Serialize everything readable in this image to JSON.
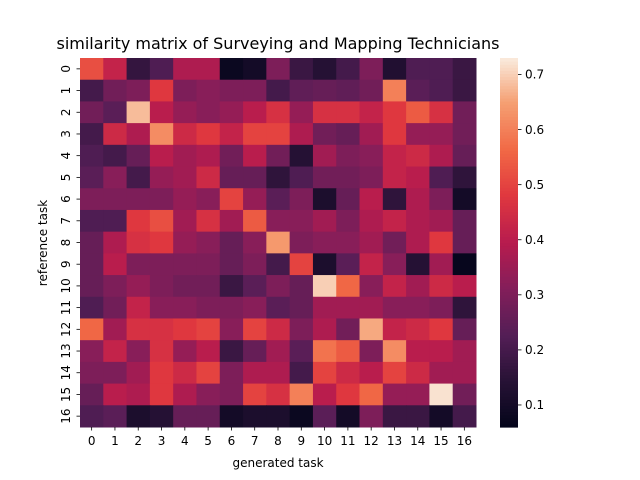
{
  "chart_data": {
    "type": "heatmap",
    "title": "similarity matrix of Surveying and Mapping Technicians",
    "xlabel": "generated task",
    "ylabel": "reference task",
    "x_categories": [
      "0",
      "1",
      "2",
      "3",
      "4",
      "5",
      "6",
      "7",
      "8",
      "9",
      "10",
      "11",
      "12",
      "13",
      "14",
      "15",
      "16"
    ],
    "y_categories": [
      "0",
      "1",
      "2",
      "3",
      "4",
      "5",
      "6",
      "7",
      "8",
      "9",
      "10",
      "11",
      "12",
      "13",
      "14",
      "15",
      "16"
    ],
    "values": [
      [
        0.52,
        0.42,
        0.17,
        0.22,
        0.38,
        0.38,
        0.08,
        0.1,
        0.3,
        0.18,
        0.14,
        0.2,
        0.3,
        0.13,
        0.22,
        0.22,
        0.18
      ],
      [
        0.2,
        0.28,
        0.3,
        0.48,
        0.3,
        0.32,
        0.3,
        0.3,
        0.2,
        0.25,
        0.26,
        0.25,
        0.28,
        0.6,
        0.24,
        0.22,
        0.18
      ],
      [
        0.28,
        0.24,
        0.68,
        0.4,
        0.34,
        0.32,
        0.34,
        0.4,
        0.46,
        0.34,
        0.46,
        0.46,
        0.42,
        0.48,
        0.54,
        0.46,
        0.28
      ],
      [
        0.2,
        0.44,
        0.38,
        0.62,
        0.44,
        0.48,
        0.42,
        0.5,
        0.5,
        0.38,
        0.28,
        0.26,
        0.36,
        0.48,
        0.34,
        0.34,
        0.28
      ],
      [
        0.22,
        0.2,
        0.26,
        0.4,
        0.36,
        0.38,
        0.28,
        0.4,
        0.28,
        0.14,
        0.36,
        0.3,
        0.32,
        0.42,
        0.44,
        0.38,
        0.26
      ],
      [
        0.24,
        0.32,
        0.2,
        0.34,
        0.36,
        0.44,
        0.26,
        0.26,
        0.16,
        0.22,
        0.28,
        0.28,
        0.3,
        0.42,
        0.4,
        0.22,
        0.16
      ],
      [
        0.3,
        0.3,
        0.3,
        0.3,
        0.34,
        0.32,
        0.5,
        0.34,
        0.24,
        0.3,
        0.12,
        0.26,
        0.4,
        0.16,
        0.38,
        0.3,
        0.1
      ],
      [
        0.22,
        0.22,
        0.48,
        0.52,
        0.36,
        0.46,
        0.36,
        0.54,
        0.32,
        0.32,
        0.36,
        0.3,
        0.38,
        0.42,
        0.38,
        0.36,
        0.26
      ],
      [
        0.26,
        0.38,
        0.46,
        0.48,
        0.34,
        0.32,
        0.26,
        0.32,
        0.64,
        0.3,
        0.32,
        0.32,
        0.36,
        0.28,
        0.38,
        0.48,
        0.26
      ],
      [
        0.26,
        0.4,
        0.3,
        0.3,
        0.3,
        0.3,
        0.26,
        0.3,
        0.2,
        0.5,
        0.12,
        0.24,
        0.42,
        0.32,
        0.14,
        0.36,
        0.07
      ],
      [
        0.26,
        0.3,
        0.34,
        0.3,
        0.28,
        0.28,
        0.18,
        0.24,
        0.3,
        0.26,
        0.7,
        0.56,
        0.32,
        0.42,
        0.36,
        0.44,
        0.4
      ],
      [
        0.22,
        0.28,
        0.42,
        0.32,
        0.32,
        0.3,
        0.3,
        0.32,
        0.24,
        0.26,
        0.36,
        0.36,
        0.36,
        0.32,
        0.32,
        0.3,
        0.16
      ],
      [
        0.56,
        0.36,
        0.46,
        0.46,
        0.48,
        0.5,
        0.32,
        0.5,
        0.44,
        0.3,
        0.38,
        0.28,
        0.66,
        0.42,
        0.44,
        0.48,
        0.26
      ],
      [
        0.32,
        0.42,
        0.32,
        0.46,
        0.34,
        0.4,
        0.18,
        0.26,
        0.36,
        0.24,
        0.58,
        0.54,
        0.3,
        0.62,
        0.4,
        0.4,
        0.36
      ],
      [
        0.3,
        0.3,
        0.36,
        0.48,
        0.44,
        0.5,
        0.3,
        0.38,
        0.38,
        0.2,
        0.5,
        0.44,
        0.4,
        0.5,
        0.44,
        0.36,
        0.36
      ],
      [
        0.26,
        0.4,
        0.38,
        0.48,
        0.38,
        0.32,
        0.3,
        0.5,
        0.46,
        0.6,
        0.4,
        0.48,
        0.56,
        0.34,
        0.34,
        0.72,
        0.28
      ],
      [
        0.22,
        0.24,
        0.12,
        0.14,
        0.26,
        0.26,
        0.1,
        0.12,
        0.12,
        0.08,
        0.24,
        0.1,
        0.3,
        0.18,
        0.18,
        0.1,
        0.2
      ]
    ],
    "vmin": 0.06,
    "vmax": 0.73,
    "colorbar_ticks": [
      "0.1",
      "0.2",
      "0.3",
      "0.4",
      "0.5",
      "0.6",
      "0.7"
    ],
    "colormap": "rocket"
  }
}
